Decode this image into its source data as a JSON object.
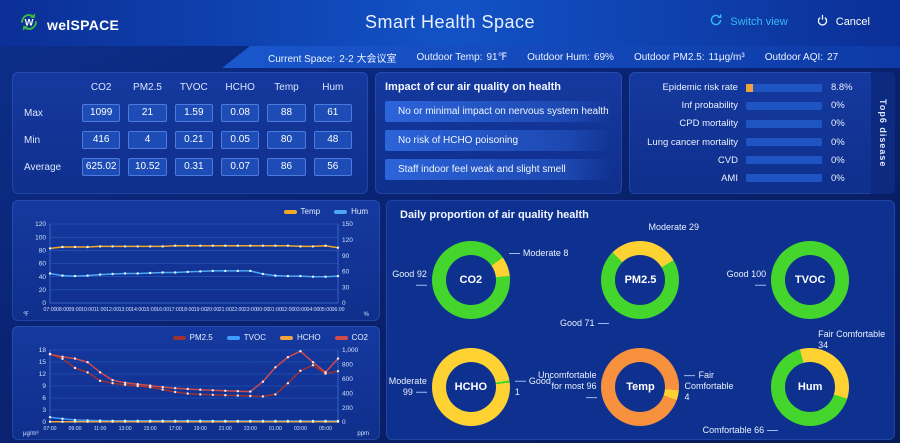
{
  "header": {
    "logo_text": "welSPACE",
    "title": "Smart Health Space",
    "switch_view_label": "Switch view",
    "cancel_label": "Cancel"
  },
  "infobar": {
    "items": [
      {
        "label": "Current Space:",
        "value": "2-2 大会议室"
      },
      {
        "label": "Outdoor Temp:",
        "value": "91℉"
      },
      {
        "label": "Outdoor Hum:",
        "value": "69%"
      },
      {
        "label": "Outdoor PM2.5:",
        "value": "11μg/m³"
      },
      {
        "label": "Outdoor AQI:",
        "value": "27"
      }
    ]
  },
  "stats_table": {
    "columns": [
      "CO2",
      "PM2.5",
      "TVOC",
      "HCHO",
      "Temp",
      "Hum"
    ],
    "rows": [
      {
        "label": "Max",
        "values": [
          "1099",
          "21",
          "1.59",
          "0.08",
          "88",
          "61"
        ]
      },
      {
        "label": "Min",
        "values": [
          "416",
          "4",
          "0.21",
          "0.05",
          "80",
          "48"
        ]
      },
      {
        "label": "Average",
        "values": [
          "625.02",
          "10.52",
          "0.31",
          "0.07",
          "86",
          "56"
        ]
      }
    ]
  },
  "impact_panel": {
    "title": "Impact of cur air quality on health",
    "items": [
      "No or minimal impact on nervous system health",
      "No risk of HCHO poisoning",
      "Staff indoor feel weak and slight smell"
    ]
  },
  "disease_panel": {
    "side_label": "Top6 disease",
    "fill_color": "#f0a33c",
    "bars": [
      {
        "label": "Epidemic risk rate",
        "value": "8.8%",
        "pct": 8.8
      },
      {
        "label": "Inf probability",
        "value": "0%",
        "pct": 0
      },
      {
        "label": "CPD mortality",
        "value": "0%",
        "pct": 0
      },
      {
        "label": "Lung cancer mortality",
        "value": "0%",
        "pct": 0
      },
      {
        "label": "CVD",
        "value": "0%",
        "pct": 0
      },
      {
        "label": "AMI",
        "value": "0%",
        "pct": 0
      }
    ]
  },
  "chart_data": [
    {
      "type": "line",
      "name": "temp-hum-trend",
      "legend_position": "top-right",
      "grid": true,
      "x": [
        "07:00",
        "08:00",
        "09:00",
        "10:00",
        "11:00",
        "12:00",
        "13:00",
        "14:00",
        "15:00",
        "16:00",
        "17:00",
        "18:00",
        "19:00",
        "20:00",
        "21:00",
        "22:00",
        "23:00",
        "00:00",
        "01:00",
        "02:00",
        "03:00",
        "04:00",
        "05:00",
        "06:00"
      ],
      "x_step": 1,
      "y_left": {
        "min": 0,
        "max": 120,
        "ticks": [
          0,
          20,
          40,
          60,
          80,
          100,
          120
        ],
        "unit": "℉"
      },
      "y_right": {
        "min": 0,
        "max": 150,
        "ticks": [
          0,
          30,
          60,
          90,
          120,
          150
        ],
        "unit": "%"
      },
      "series": [
        {
          "name": "Temp",
          "axis": "left",
          "color": "#f5a623",
          "values": [
            83,
            85,
            85,
            85,
            86,
            86,
            86,
            86,
            86,
            86,
            87,
            87,
            87,
            87,
            87,
            87,
            87,
            87,
            87,
            87,
            86,
            86,
            87,
            84
          ]
        },
        {
          "name": "Hum",
          "axis": "right",
          "color": "#4aa7f5",
          "values": [
            56,
            52,
            51,
            52,
            54,
            55,
            56,
            56,
            57,
            58,
            58,
            59,
            60,
            61,
            61,
            61,
            61,
            55,
            52,
            51,
            51,
            50,
            50,
            51
          ]
        }
      ]
    },
    {
      "type": "line",
      "name": "pollutant-trend",
      "legend_position": "top-right",
      "grid": true,
      "x": [
        "07:00",
        "08:00",
        "09:00",
        "10:00",
        "11:00",
        "12:00",
        "13:00",
        "14:00",
        "15:00",
        "16:00",
        "17:00",
        "18:00",
        "19:00",
        "20:00",
        "21:00",
        "22:00",
        "23:00",
        "00:00",
        "01:00",
        "02:00",
        "03:00",
        "04:00",
        "05:00",
        "06:00"
      ],
      "x_step": 2,
      "y_left": {
        "min": 0,
        "max": 18,
        "ticks": [
          0,
          3,
          6,
          9,
          12,
          15,
          18
        ],
        "unit": "μg/m³"
      },
      "y_right": {
        "min": 0,
        "max": 1000,
        "ticks": [
          0,
          200,
          400,
          600,
          800,
          1000
        ],
        "unit": "ppm"
      },
      "series": [
        {
          "name": "PM2.5",
          "axis": "left",
          "color": "#9c3232",
          "values": [
            17,
            15.8,
            13.5,
            12.4,
            10.3,
            9.7,
            9.3,
            9,
            8.7,
            8.1,
            7.5,
            7.1,
            6.9,
            6.8,
            6.7,
            6.6,
            6.5,
            6.4,
            6.9,
            9.7,
            12.8,
            14.2,
            12.1,
            12.7
          ]
        },
        {
          "name": "TVOC",
          "axis": "left",
          "color": "#3f9bff",
          "values": [
            1.2,
            0.8,
            0.5,
            0.4,
            0.35,
            0.3,
            0.3,
            0.3,
            0.3,
            0.3,
            0.3,
            0.3,
            0.3,
            0.28,
            0.28,
            0.28,
            0.28,
            0.25,
            0.25,
            0.25,
            0.25,
            0.25,
            0.25,
            0.25
          ]
        },
        {
          "name": "HCHO",
          "axis": "left",
          "color": "#f0a33c",
          "values": [
            0.08,
            0.07,
            0.07,
            0.07,
            0.07,
            0.07,
            0.07,
            0.07,
            0.07,
            0.07,
            0.07,
            0.07,
            0.07,
            0.07,
            0.07,
            0.07,
            0.07,
            0.07,
            0.07,
            0.07,
            0.07,
            0.07,
            0.07,
            0.07
          ]
        },
        {
          "name": "CO2",
          "axis": "right",
          "color": "#d14a4a",
          "values": [
            940,
            905,
            880,
            830,
            690,
            580,
            545,
            525,
            505,
            485,
            470,
            458,
            448,
            440,
            434,
            428,
            422,
            560,
            760,
            900,
            983,
            830,
            690,
            880
          ]
        }
      ]
    },
    {
      "type": "pie",
      "name": "daily-proportion-donuts",
      "title": "Daily proportion of air quality health",
      "donuts": [
        {
          "id": "co2",
          "center": "CO2",
          "start_angle": 55,
          "segments": [
            {
              "name": "Moderate",
              "value": 8,
              "color": "#ffd234",
              "label_pos": "rt"
            },
            {
              "name": "Good",
              "value": 92,
              "color": "#44d62c",
              "label_pos": "l"
            }
          ]
        },
        {
          "id": "pm25",
          "center": "PM2.5",
          "start_angle": -45,
          "segments": [
            {
              "name": "Moderate",
              "value": 29,
              "color": "#ffd234",
              "label_pos": "tr"
            },
            {
              "name": "Good",
              "value": 71,
              "color": "#44d62c",
              "label_pos": "bl"
            }
          ]
        },
        {
          "id": "tvoc",
          "center": "TVOC",
          "start_angle": 0,
          "segments": [
            {
              "name": "Good",
              "value": 100,
              "color": "#44d62c",
              "label_pos": "l"
            }
          ]
        },
        {
          "id": "hcho",
          "center": "HCHO",
          "start_angle": 80,
          "segments": [
            {
              "name": "Good",
              "value": 1,
              "color": "#44d62c",
              "label_pos": "r"
            },
            {
              "name": "Moderate",
              "value": 99,
              "color": "#ffd234",
              "label_pos": "l"
            }
          ]
        },
        {
          "id": "temp",
          "center": "Temp",
          "start_angle": 95,
          "segments": [
            {
              "name": "Fair Comfortable",
              "value": 4,
              "color": "#ffd234",
              "label_pos": "r"
            },
            {
              "name": "Uncomfortable for most",
              "value": 96,
              "color": "#f7913d",
              "label_pos": "l"
            }
          ]
        },
        {
          "id": "hum",
          "center": "Hum",
          "start_angle": -15,
          "segments": [
            {
              "name": "Fair Comfortable",
              "value": 34,
              "color": "#ffd234",
              "label_pos": "tr"
            },
            {
              "name": "Comfortable",
              "value": 66,
              "color": "#44d62c",
              "label_pos": "bl"
            }
          ]
        }
      ]
    }
  ]
}
